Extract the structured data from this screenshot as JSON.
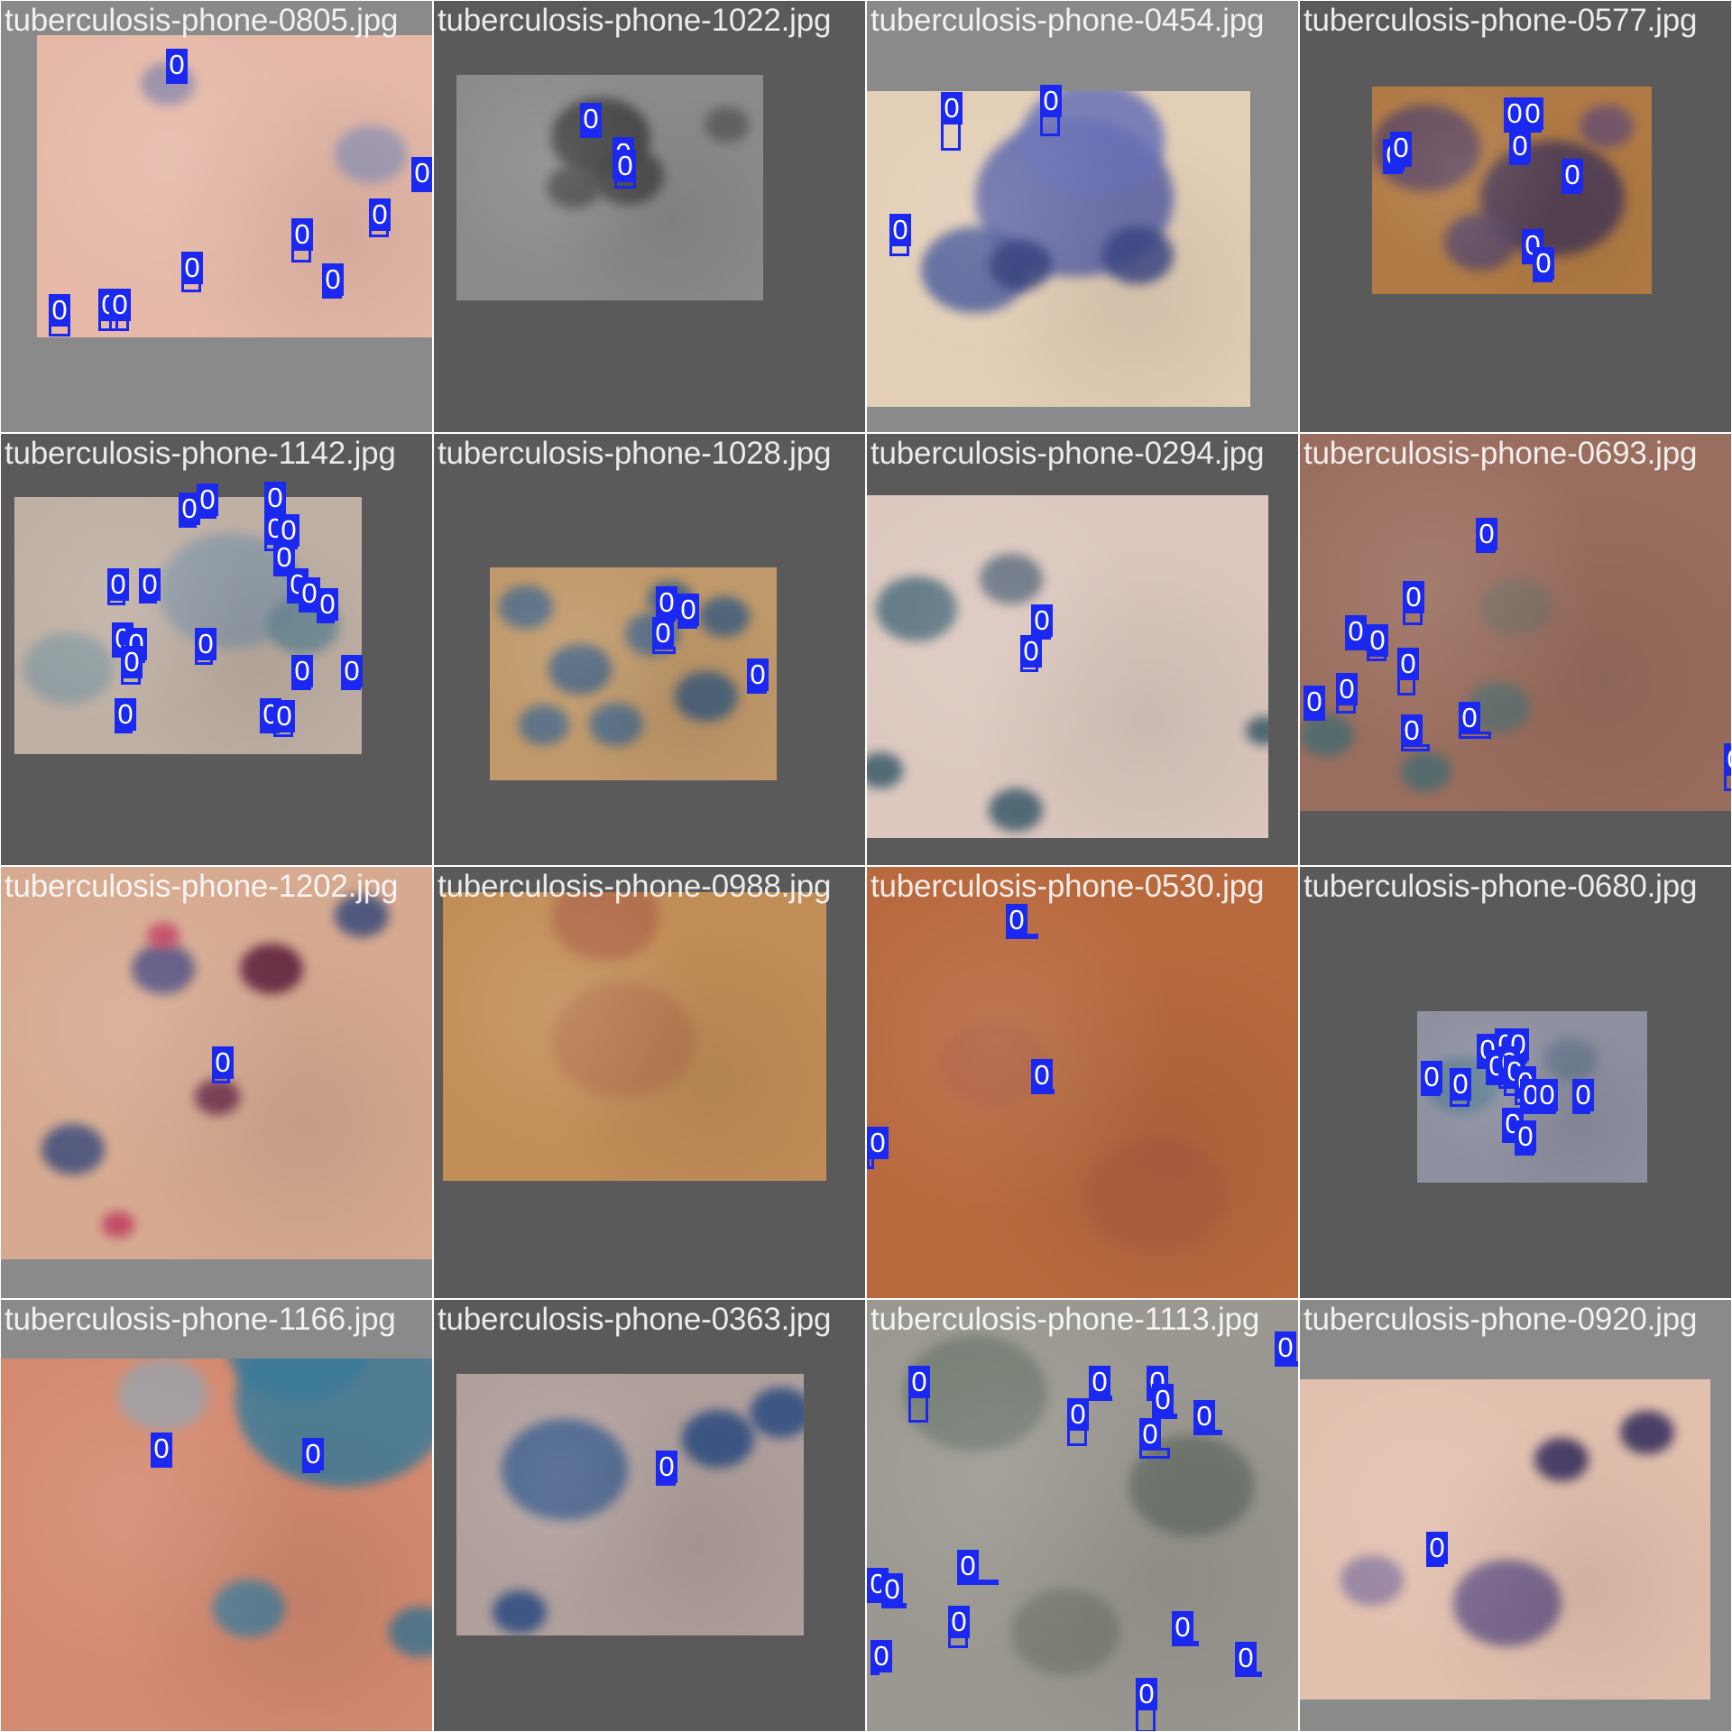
{
  "box_color": "#1a28f0",
  "tiles": [
    {
      "filename": "tuberculosis-phone-0805.jpg",
      "tile_bg": "#8a8a8a",
      "photo_bg": "#e6b9a8",
      "photo": [
        40,
        38,
        480,
        335
      ],
      "blobs": [
        [
          145,
          60,
          30,
          "#8a87a8"
        ],
        [
          370,
          140,
          40,
          "#9a9ab8"
        ]
      ],
      "detections": [
        [
          183,
          50,
          24,
          38,
          "0"
        ],
        [
          455,
          170,
          24,
          40,
          "0"
        ],
        [
          408,
          216,
          22,
          46,
          "0"
        ],
        [
          322,
          238,
          22,
          52,
          "0"
        ],
        [
          200,
          275,
          22,
          48,
          "0"
        ],
        [
          356,
          288,
          22,
          40,
          "0"
        ],
        [
          53,
          322,
          24,
          50,
          "0"
        ],
        [
          108,
          316,
          22,
          50,
          "0"
        ],
        [
          120,
          316,
          22,
          50,
          "0"
        ]
      ]
    },
    {
      "filename": "tuberculosis-phone-1022.jpg",
      "tile_bg": "#5a5a5a",
      "photo_bg": "#8b8b8b",
      "photo": [
        25,
        82,
        340,
        250
      ],
      "blobs": [
        [
          160,
          80,
          55,
          "#3e3e3e"
        ],
        [
          190,
          120,
          40,
          "#454545"
        ],
        [
          130,
          130,
          30,
          "#4a4a4a"
        ],
        [
          300,
          60,
          25,
          "#5a5a5a"
        ]
      ],
      "detections": [
        [
          162,
          110,
          24,
          38,
          "0"
        ],
        [
          198,
          148,
          24,
          50,
          "0"
        ],
        [
          200,
          162,
          24,
          46,
          "0"
        ]
      ]
    },
    {
      "filename": "tuberculosis-phone-0454.jpg",
      "tile_bg": "#8a8a8a",
      "photo_bg": "#e3cfb7",
      "photo": [
        0,
        100,
        425,
        350
      ],
      "blobs": [
        [
          230,
          140,
          110,
          "#5a62a8"
        ],
        [
          120,
          210,
          60,
          "#4a5a9a"
        ],
        [
          170,
          200,
          35,
          "#2e3a7a"
        ],
        [
          300,
          190,
          40,
          "#3e4a8a"
        ],
        [
          250,
          70,
          80,
          "#6a72b8"
        ]
      ],
      "detections": [
        [
          82,
          98,
          22,
          68,
          "0"
        ],
        [
          192,
          90,
          22,
          60,
          "0"
        ],
        [
          25,
          233,
          22,
          50,
          "0"
        ]
      ]
    },
    {
      "filename": "tuberculosis-phone-0577.jpg",
      "tile_bg": "#5a5a5a",
      "photo_bg": "#b07a44",
      "photo": [
        80,
        95,
        310,
        230
      ],
      "blobs": [
        [
          60,
          80,
          60,
          "#5a4560"
        ],
        [
          200,
          140,
          80,
          "#4a3a5a"
        ],
        [
          120,
          180,
          40,
          "#5a4a6a"
        ],
        [
          260,
          50,
          30,
          "#6a5070"
        ]
      ],
      "detections": [
        [
          92,
          150,
          22,
          36,
          "0"
        ],
        [
          100,
          142,
          24,
          38,
          "0"
        ],
        [
          226,
          104,
          22,
          36,
          "0"
        ],
        [
          246,
          104,
          22,
          40,
          "0"
        ],
        [
          232,
          140,
          22,
          36,
          "0"
        ],
        [
          290,
          172,
          22,
          36,
          "0"
        ],
        [
          246,
          250,
          22,
          40,
          "0"
        ],
        [
          258,
          270,
          22,
          42,
          "0"
        ]
      ]
    },
    {
      "filename": "tuberculosis-phone-1142.jpg",
      "tile_bg": "#5a5a5a",
      "photo_bg": "#bfb0a4",
      "photo": [
        15,
        70,
        385,
        285
      ],
      "blobs": [
        [
          240,
          120,
          80,
          "#8c9aa8"
        ],
        [
          60,
          200,
          50,
          "#8a9aa0"
        ],
        [
          320,
          150,
          40,
          "#6a8a98"
        ]
      ],
      "detections": [
        [
          197,
          62,
          20,
          40,
          "0"
        ],
        [
          217,
          52,
          22,
          40,
          "0"
        ],
        [
          292,
          50,
          22,
          44,
          "0"
        ],
        [
          292,
          84,
          22,
          46,
          "0"
        ],
        [
          307,
          86,
          22,
          42,
          "0"
        ],
        [
          302,
          116,
          22,
          40,
          "0"
        ],
        [
          118,
          146,
          20,
          44,
          "0"
        ],
        [
          153,
          146,
          20,
          42,
          "0"
        ],
        [
          317,
          146,
          20,
          40,
          "0"
        ],
        [
          330,
          156,
          22,
          42,
          "0"
        ],
        [
          350,
          168,
          20,
          40,
          "0"
        ],
        [
          123,
          206,
          22,
          40,
          "0"
        ],
        [
          138,
          212,
          22,
          40,
          "0"
        ],
        [
          215,
          212,
          20,
          44,
          "0"
        ],
        [
          133,
          232,
          22,
          46,
          "0"
        ],
        [
          322,
          242,
          22,
          40,
          "0"
        ],
        [
          377,
          242,
          22,
          42,
          "0"
        ],
        [
          126,
          290,
          20,
          42,
          "0"
        ],
        [
          287,
          290,
          22,
          42,
          "0"
        ],
        [
          302,
          292,
          22,
          44,
          "0"
        ]
      ]
    },
    {
      "filename": "tuberculosis-phone-1028.jpg",
      "tile_bg": "#5a5a5a",
      "photo_bg": "#c0996a",
      "photo": [
        62,
        148,
        318,
        236
      ],
      "blobs": [
        [
          40,
          50,
          30,
          "#4a6a8a"
        ],
        [
          100,
          120,
          35,
          "#3e5e80"
        ],
        [
          180,
          80,
          30,
          "#4a6a8a"
        ],
        [
          240,
          150,
          35,
          "#3e5e80"
        ],
        [
          140,
          180,
          30,
          "#4a6a8a"
        ],
        [
          260,
          60,
          28,
          "#3e5e80"
        ],
        [
          60,
          180,
          28,
          "#4a6a8a"
        ],
        [
          200,
          40,
          25,
          "#3e5e80"
        ]
      ],
      "detections": [
        [
          246,
          166,
          22,
          42,
          "0"
        ],
        [
          270,
          174,
          22,
          40,
          "0"
        ],
        [
          242,
          200,
          26,
          44,
          "0"
        ],
        [
          347,
          246,
          22,
          40,
          "0"
        ]
      ]
    },
    {
      "filename": "tuberculosis-phone-0294.jpg",
      "tile_bg": "#5a5a5a",
      "photo_bg": "#dcc8bf",
      "photo": [
        0,
        68,
        445,
        380
      ],
      "blobs": [
        [
          55,
          135,
          45,
          "#4a6a7a"
        ],
        [
          160,
          100,
          35,
          "#5a6a7a"
        ],
        [
          15,
          310,
          25,
          "#3a5a6a"
        ],
        [
          165,
          355,
          30,
          "#3a5a6a"
        ],
        [
          440,
          265,
          20,
          "#3a5a6a"
        ]
      ],
      "detections": [
        [
          182,
          186,
          22,
          36,
          "0"
        ],
        [
          170,
          220,
          20,
          44,
          "0"
        ]
      ]
    },
    {
      "filename": "tuberculosis-phone-0693.jpg",
      "tile_bg": "#5a5a5a",
      "photo_bg": "#9a6e5e",
      "photo": [
        0,
        0,
        480,
        418
      ],
      "blobs": [
        [
          30,
          340,
          30,
          "#4a6a70"
        ],
        [
          140,
          380,
          28,
          "#4a6a70"
        ],
        [
          220,
          310,
          35,
          "#5a7070"
        ],
        [
          240,
          200,
          40,
          "#7a6e64"
        ]
      ],
      "detections": [
        [
          195,
          90,
          22,
          40,
          "0"
        ],
        [
          114,
          160,
          22,
          52,
          "0"
        ],
        [
          50,
          198,
          24,
          40,
          "0"
        ],
        [
          74,
          208,
          22,
          44,
          "0"
        ],
        [
          108,
          234,
          20,
          56,
          "0"
        ],
        [
          40,
          262,
          22,
          48,
          "0"
        ],
        [
          4,
          276,
          24,
          40,
          "0"
        ],
        [
          112,
          308,
          32,
          44,
          "0"
        ],
        [
          176,
          294,
          36,
          44,
          "0"
        ],
        [
          470,
          340,
          20,
          56,
          "0"
        ]
      ]
    },
    {
      "filename": "tuberculosis-phone-1202.jpg",
      "tile_bg": "#8a8a8a",
      "photo_bg": "#d6aa90",
      "photo": [
        0,
        0,
        480,
        435
      ],
      "blobs": [
        [
          180,
          120,
          35,
          "#4a4a80"
        ],
        [
          80,
          320,
          35,
          "#3a4a7a"
        ],
        [
          300,
          120,
          35,
          "#5a1a3a"
        ],
        [
          240,
          260,
          25,
          "#6a2a4a"
        ],
        [
          400,
          60,
          30,
          "#3a4a7a"
        ],
        [
          180,
          80,
          18,
          "#c03a60"
        ],
        [
          130,
          400,
          18,
          "#c03a60"
        ]
      ],
      "detections": [
        [
          234,
          196,
          20,
          44,
          "0"
        ]
      ]
    },
    {
      "filename": "tuberculosis-phone-0988.jpg",
      "tile_bg": "#5a5a5a",
      "photo_bg": "#c28e58",
      "photo": [
        10,
        28,
        425,
        320
      ],
      "blobs": [
        [
          180,
          40,
          60,
          "#b06a4a"
        ],
        [
          200,
          180,
          80,
          "#b87a50"
        ]
      ],
      "detections": []
    },
    {
      "filename": "tuberculosis-phone-0530.jpg",
      "tile_bg": "#5a5a5a",
      "photo_bg": "#b8693e",
      "photo": [
        0,
        0,
        480,
        480
      ],
      "blobs": [
        [
          140,
          230,
          60,
          "#b06040"
        ],
        [
          320,
          380,
          80,
          "#b06040"
        ]
      ],
      "detections": [
        [
          154,
          38,
          36,
          36,
          "0"
        ],
        [
          182,
          210,
          26,
          40,
          "0"
        ],
        [
          0,
          285,
          8,
          50,
          "0"
        ]
      ]
    },
    {
      "filename": "tuberculosis-phone-0680.jpg",
      "tile_bg": "#5a5a5a",
      "photo_bg": "#8e90a0",
      "photo": [
        130,
        160,
        255,
        190
      ],
      "blobs": [
        [
          50,
          90,
          40,
          "#5a7a90"
        ],
        [
          170,
          60,
          30,
          "#6a7a90"
        ]
      ],
      "detections": [
        [
          134,
          212,
          22,
          40,
          "0"
        ],
        [
          166,
          220,
          22,
          46,
          "0"
        ],
        [
          196,
          182,
          22,
          40,
          "0"
        ],
        [
          216,
          176,
          22,
          42,
          "0"
        ],
        [
          206,
          200,
          20,
          36,
          "0"
        ],
        [
          230,
          176,
          22,
          40,
          "0"
        ],
        [
          220,
          196,
          20,
          50,
          "0"
        ],
        [
          226,
          206,
          22,
          48,
          "0"
        ],
        [
          238,
          218,
          22,
          46,
          "0"
        ],
        [
          244,
          232,
          20,
          42,
          "0"
        ],
        [
          262,
          232,
          22,
          36,
          "0"
        ],
        [
          302,
          232,
          20,
          36,
          "0"
        ],
        [
          224,
          264,
          22,
          36,
          "0"
        ],
        [
          238,
          278,
          22,
          40,
          "0"
        ]
      ]
    },
    {
      "filename": "tuberculosis-phone-1166.jpg",
      "tile_bg": "#8a8a8a",
      "photo_bg": "#d48a70",
      "photo": [
        0,
        65,
        480,
        415
      ],
      "blobs": [
        [
          380,
          70,
          120,
          "#3a7a98"
        ],
        [
          330,
          0,
          80,
          "#3a7a98"
        ],
        [
          275,
          285,
          40,
          "#4a82a0"
        ],
        [
          465,
          310,
          35,
          "#3e7690"
        ],
        [
          180,
          50,
          50,
          "#9aa0a8"
        ]
      ],
      "detections": [
        [
          166,
          144,
          24,
          40,
          "0"
        ],
        [
          334,
          150,
          20,
          42,
          "0"
        ]
      ]
    },
    {
      "filename": "tuberculosis-phone-0363.jpg",
      "tile_bg": "#5a5a5a",
      "photo_bg": "#b0a09c",
      "photo": [
        25,
        82,
        385,
        290
      ],
      "blobs": [
        [
          290,
          80,
          40,
          "#2a4a80"
        ],
        [
          360,
          50,
          35,
          "#2a4a80"
        ],
        [
          120,
          120,
          70,
          "#3a5a8a"
        ],
        [
          70,
          270,
          30,
          "#2a4a80"
        ]
      ],
      "detections": [
        [
          246,
          164,
          22,
          36,
          "0"
        ]
      ]
    },
    {
      "filename": "tuberculosis-phone-1113.jpg",
      "tile_bg": "#5a5a5a",
      "photo_bg": "#9a9890",
      "photo": [
        0,
        0,
        480,
        480
      ],
      "blobs": [
        [
          120,
          120,
          80,
          "#707a70"
        ],
        [
          360,
          220,
          70,
          "#6a726a"
        ],
        [
          220,
          380,
          60,
          "#7a7e74"
        ]
      ],
      "detections": [
        [
          452,
          32,
          28,
          38,
          "0"
        ],
        [
          246,
          70,
          26,
          40,
          "0"
        ],
        [
          46,
          70,
          22,
          66,
          "0"
        ],
        [
          310,
          70,
          26,
          42,
          "0"
        ],
        [
          316,
          90,
          28,
          36,
          "0"
        ],
        [
          362,
          108,
          32,
          40,
          "0"
        ],
        [
          222,
          106,
          22,
          56,
          "0"
        ],
        [
          302,
          128,
          34,
          48,
          "0"
        ],
        [
          100,
          274,
          46,
          24,
          "0"
        ],
        [
          0,
          294,
          34,
          42,
          "0"
        ],
        [
          16,
          300,
          28,
          40,
          "0"
        ],
        [
          90,
          336,
          22,
          50,
          "0"
        ],
        [
          338,
          342,
          30,
          34,
          "0"
        ],
        [
          4,
          374,
          10,
          42,
          "0"
        ],
        [
          408,
          376,
          30,
          36,
          "0"
        ],
        [
          298,
          416,
          22,
          64,
          "0"
        ]
      ]
    },
    {
      "filename": "tuberculosis-phone-0920.jpg",
      "tile_bg": "#8a8a8a",
      "photo_bg": "#e2c0ae",
      "photo": [
        0,
        88,
        455,
        355
      ],
      "blobs": [
        [
          290,
          95,
          30,
          "#302a5a"
        ],
        [
          385,
          65,
          30,
          "#302a5a"
        ],
        [
          230,
          260,
          60,
          "#6a5a8a"
        ],
        [
          80,
          230,
          35,
          "#8a7aa0"
        ]
      ],
      "detections": [
        [
          140,
          254,
          20,
          38,
          "0"
        ]
      ]
    }
  ]
}
